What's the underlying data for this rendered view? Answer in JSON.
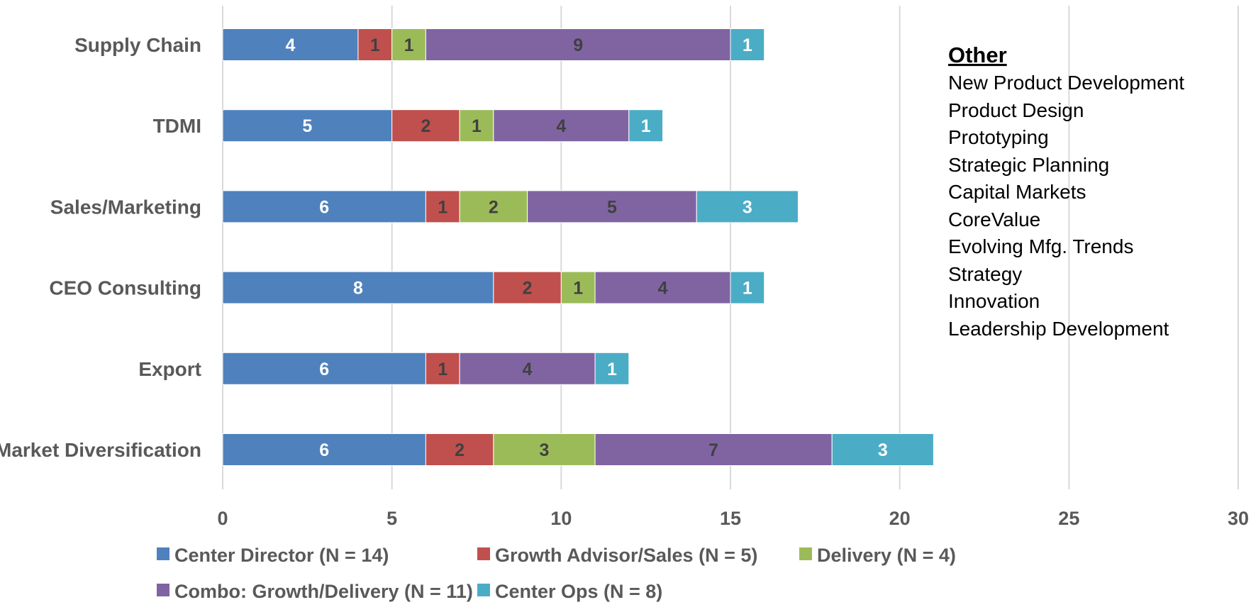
{
  "chart_data": {
    "type": "bar",
    "orientation": "horizontal",
    "stacked": true,
    "categories": [
      "Supply Chain",
      "TDMI",
      "Sales/Marketing",
      "CEO Consulting",
      "Export",
      "Market Diversification"
    ],
    "series": [
      {
        "name": "Center Director (N = 14)",
        "color": "#4F81BD",
        "label_color": "#FFFFFF",
        "values": [
          4,
          5,
          6,
          8,
          6,
          6
        ]
      },
      {
        "name": "Growth Advisor/Sales (N = 5)",
        "color": "#C0504D",
        "label_color": "#404040",
        "values": [
          1,
          2,
          1,
          2,
          1,
          2
        ]
      },
      {
        "name": "Delivery (N = 4)",
        "color": "#9BBB59",
        "label_color": "#404040",
        "values": [
          1,
          1,
          2,
          1,
          0,
          3
        ]
      },
      {
        "name": "Combo: Growth/Delivery (N = 11)",
        "color": "#8064A2",
        "label_color": "#404040",
        "values": [
          9,
          4,
          5,
          4,
          4,
          7
        ]
      },
      {
        "name": "Center Ops (N = 8)",
        "color": "#4BACC6",
        "label_color": "#FFFFFF",
        "values": [
          1,
          1,
          3,
          1,
          1,
          3
        ]
      }
    ],
    "xlim": [
      0,
      30
    ],
    "xticks": [
      0,
      5,
      10,
      15,
      20,
      25,
      30
    ],
    "grid": "vertical",
    "legend_position": "bottom",
    "title": "",
    "xlabel": "",
    "ylabel": ""
  },
  "annotation": {
    "title": "Other",
    "items": [
      "New Product Development",
      "Product Design",
      "Prototyping",
      "Strategic Planning",
      "Capital Markets",
      "CoreValue",
      "Evolving Mfg. Trends",
      "Strategy",
      "Innovation",
      "Leadership Development"
    ]
  }
}
